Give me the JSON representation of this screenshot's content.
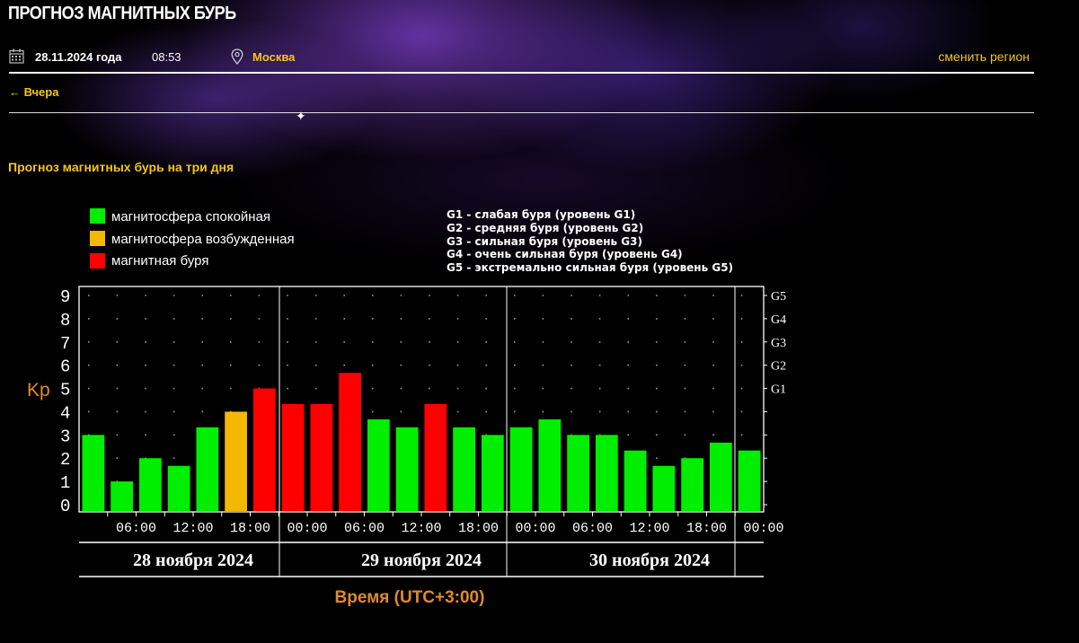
{
  "page": {
    "title": "ПРОГНОЗ МАГНИТНЫХ БУРЬ",
    "date": "28.11.2024 года",
    "time": "08:53",
    "city": "Москва",
    "change_region": "сменить регион",
    "prev_link": "← Вчера",
    "section_title": "Прогноз магнитных бурь на три дня",
    "icons": {
      "calendar": "calendar-icon",
      "location": "map-pin-icon",
      "decoration": "star-sparkle-icon"
    }
  },
  "legend": {
    "status": [
      {
        "label": "магнитосфера спокойная",
        "color": "#00ee00"
      },
      {
        "label": "магнитосфера возбужденная",
        "color": "#f5b800"
      },
      {
        "label": "магнитная буря",
        "color": "#ff0000"
      }
    ],
    "levels": [
      "G1 - слабая буря (уровень G1)",
      "G2 - средняя буря (уровень G2)",
      "G3 - сильная буря (уровень G3)",
      "G4 - очень сильная буря (уровень G4)",
      "G5 - экстремально сильная буря (уровень G5)"
    ]
  },
  "chart_data": {
    "type": "bar",
    "ylabel": "Kp",
    "xlabel": "Время (UTC+3:00)",
    "ylim": [
      0,
      9
    ],
    "grid": "dotted",
    "yticks": [
      "0",
      "1",
      "2",
      "3",
      "4",
      "5",
      "6",
      "7",
      "8",
      "9"
    ],
    "g_ticks": [
      {
        "label": "G1",
        "kp": 5
      },
      {
        "label": "G2",
        "kp": 6
      },
      {
        "label": "G3",
        "kp": 7
      },
      {
        "label": "G4",
        "kp": 8
      },
      {
        "label": "G5",
        "kp": 9
      }
    ],
    "days": [
      "28 ноября 2024",
      "29 ноября 2024",
      "30 ноября 2024"
    ],
    "xticks": [
      "06:00",
      "12:00",
      "18:00",
      "00:00",
      "06:00",
      "12:00",
      "18:00",
      "00:00",
      "06:00",
      "12:00",
      "18:00",
      "00:00"
    ],
    "values": [
      3.0,
      1.0,
      2.0,
      1.67,
      3.33,
      4.0,
      5.0,
      4.33,
      4.33,
      5.67,
      3.67,
      3.33,
      4.33,
      3.33,
      3.0,
      3.33,
      3.67,
      3.0,
      3.0,
      2.33,
      1.67,
      2.0,
      2.67,
      2.33
    ],
    "status": [
      "quiet",
      "quiet",
      "quiet",
      "quiet",
      "quiet",
      "active",
      "storm",
      "storm",
      "storm",
      "storm",
      "quiet",
      "quiet",
      "storm",
      "quiet",
      "quiet",
      "quiet",
      "quiet",
      "quiet",
      "quiet",
      "quiet",
      "quiet",
      "quiet",
      "quiet",
      "quiet"
    ],
    "colors": {
      "quiet": "#00ee00",
      "active": "#f5b800",
      "storm": "#ff0000"
    }
  }
}
